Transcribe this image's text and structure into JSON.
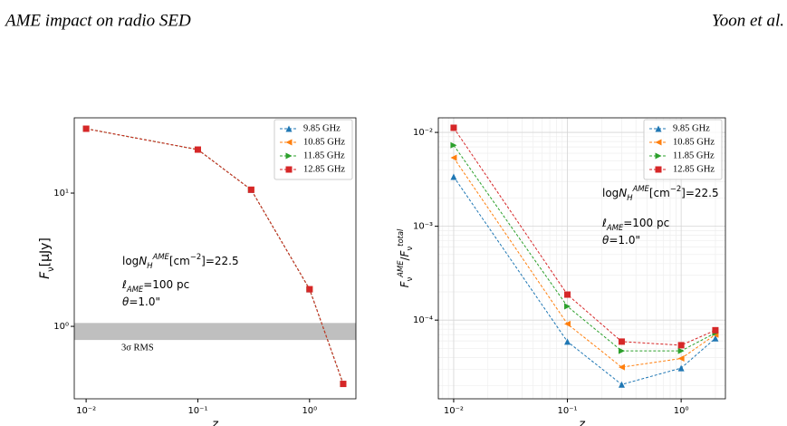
{
  "header": {
    "left": "AME impact on radio SED",
    "right": "Yoon et al."
  },
  "chart_data": [
    {
      "type": "line",
      "xlog": true,
      "ylog": true,
      "grid": false,
      "legend": "upper right",
      "xlabel": [
        {
          "text": "z",
          "italic": true
        }
      ],
      "ylabel": [
        {
          "text": "F",
          "italic": true
        },
        {
          "text": "ν",
          "pos": "sub"
        },
        {
          "text": "[μJy]"
        }
      ],
      "x": [
        0.01,
        0.1,
        0.3,
        1,
        2
      ],
      "xlim": [
        0.00783,
        2.6
      ],
      "xticks": [
        {
          "value": 0.01,
          "label": "10⁻²"
        },
        {
          "value": 0.1,
          "label": "10⁻¹"
        },
        {
          "value": 1,
          "label": "10⁰"
        }
      ],
      "ylim": [
        0.286,
        36.7
      ],
      "yticks": [
        {
          "value": 1,
          "label": "10⁰"
        },
        {
          "value": 10,
          "label": "10¹"
        }
      ],
      "band": {
        "range": [
          0.79,
          1.06
        ],
        "color": "#bfbfbf",
        "label": "3σ RMS"
      },
      "annotations": [
        [
          {
            "text": "log"
          },
          {
            "text": "N",
            "italic": true
          },
          {
            "text": "H",
            "pos": "sub",
            "italic": true
          },
          {
            "text": "AME",
            "pos": "sup",
            "italic": true
          },
          {
            "text": "[cm"
          },
          {
            "text": "−2",
            "pos": "sup"
          },
          {
            "text": "]=22.5"
          }
        ],
        [
          {
            "text": "ℓ",
            "italic": true
          },
          {
            "text": "AME",
            "pos": "sub",
            "italic": true
          },
          {
            "text": "=100 pc"
          }
        ],
        [
          {
            "text": "θ",
            "italic": true
          },
          {
            "text": "=1.0\""
          }
        ]
      ],
      "series": [
        {
          "name": "9.85 GHz",
          "color": "#1f77b4",
          "marker": "^",
          "values": [
            30.4,
            21.2,
            10.6,
            1.9,
            0.37
          ]
        },
        {
          "name": "10.85 GHz",
          "color": "#ff7f0e",
          "marker": "<",
          "values": [
            30.4,
            21.2,
            10.6,
            1.9,
            0.37
          ]
        },
        {
          "name": "11.85 GHz",
          "color": "#2ca02c",
          "marker": ">",
          "values": [
            30.4,
            21.2,
            10.6,
            1.9,
            0.37
          ]
        },
        {
          "name": "12.85 GHz",
          "color": "#d62728",
          "marker": "s",
          "values": [
            30.4,
            21.2,
            10.6,
            1.9,
            0.37
          ]
        }
      ]
    },
    {
      "type": "line",
      "xlog": true,
      "ylog": true,
      "grid": true,
      "legend": "upper right",
      "xlabel": [
        {
          "text": "z",
          "italic": true
        }
      ],
      "ylabel": [
        {
          "text": "F",
          "italic": true
        },
        {
          "text": "ν",
          "pos": "sub"
        },
        {
          "text": "AME",
          "pos": "sup",
          "italic": true
        },
        {
          "text": "/"
        },
        {
          "text": "F",
          "italic": true
        },
        {
          "text": "ν",
          "pos": "sub"
        },
        {
          "text": "total",
          "pos": "sup",
          "italic": true
        }
      ],
      "x": [
        0.01,
        0.1,
        0.3,
        1,
        2
      ],
      "xlim": [
        0.00733,
        2.45
      ],
      "xticks": [
        {
          "value": 0.01,
          "label": "10⁻²"
        },
        {
          "value": 0.1,
          "label": "10⁻¹"
        },
        {
          "value": 1,
          "label": "10⁰"
        }
      ],
      "ylim": [
        1.45e-05,
        0.0143
      ],
      "yticks": [
        {
          "value": 0.0001,
          "label": "10⁻⁴"
        },
        {
          "value": 0.001,
          "label": "10⁻³"
        },
        {
          "value": 0.01,
          "label": "10⁻²"
        }
      ],
      "annotations": [
        [
          {
            "text": "log"
          },
          {
            "text": "N",
            "italic": true
          },
          {
            "text": "H",
            "pos": "sub",
            "italic": true
          },
          {
            "text": "AME",
            "pos": "sup",
            "italic": true
          },
          {
            "text": "[cm"
          },
          {
            "text": "−2",
            "pos": "sup"
          },
          {
            "text": "]=22.5"
          }
        ],
        [
          {
            "text": "ℓ",
            "italic": true
          },
          {
            "text": "AME",
            "pos": "sub",
            "italic": true
          },
          {
            "text": "=100 pc"
          }
        ],
        [
          {
            "text": "θ",
            "italic": true
          },
          {
            "text": "=1.0\""
          }
        ]
      ],
      "series": [
        {
          "name": "9.85 GHz",
          "color": "#1f77b4",
          "marker": "^",
          "values": [
            0.00337,
            5.9e-05,
            2.06e-05,
            3.08e-05,
            6.4e-05
          ]
        },
        {
          "name": "10.85 GHz",
          "color": "#ff7f0e",
          "marker": "<",
          "values": [
            0.00537,
            9.1e-05,
            3.15e-05,
            3.9e-05,
            7e-05
          ]
        },
        {
          "name": "11.85 GHz",
          "color": "#2ca02c",
          "marker": ">",
          "values": [
            0.0073,
            0.00014,
            4.7e-05,
            4.7e-05,
            7.3e-05
          ]
        },
        {
          "name": "12.85 GHz",
          "color": "#d62728",
          "marker": "s",
          "values": [
            0.0112,
            0.000187,
            5.9e-05,
            5.4e-05,
            7.8e-05
          ]
        }
      ]
    }
  ]
}
